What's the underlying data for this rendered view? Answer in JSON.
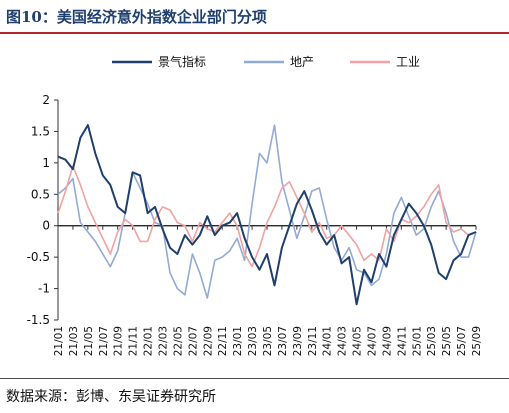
{
  "figure": {
    "title": "图10：美国经济意外指数企业部门分项",
    "source": "数据来源：彭博、东吴证券研究所"
  },
  "colors": {
    "series_0": "#1f3f6d",
    "series_1": "#93aad6",
    "series_2": "#f3a1a1",
    "accent_rule": "#b2252b"
  },
  "chart_data": {
    "type": "line",
    "title": "",
    "xlabel": "",
    "ylabel": "",
    "ylim": [
      -1.5,
      2
    ],
    "yticks": [
      -1.5,
      -1,
      -0.5,
      0,
      0.5,
      1,
      1.5,
      2
    ],
    "grid": false,
    "legend_position": "top",
    "x_tick_labels": [
      "21/01",
      "21/03",
      "21/05",
      "21/07",
      "21/09",
      "21/11",
      "22/01",
      "22/03",
      "22/05",
      "22/07",
      "22/09",
      "22/11",
      "23/01",
      "23/03",
      "23/05",
      "23/07",
      "23/09",
      "23/11",
      "24/01",
      "24/03",
      "24/05",
      "24/07",
      "24/09",
      "24/11",
      "25/01",
      "25/03",
      "25/05",
      "25/07",
      "25/09"
    ],
    "x_months": [
      "21/01",
      "21/02",
      "21/03",
      "21/04",
      "21/05",
      "21/06",
      "21/07",
      "21/08",
      "21/09",
      "21/10",
      "21/11",
      "21/12",
      "22/01",
      "22/02",
      "22/03",
      "22/04",
      "22/05",
      "22/06",
      "22/07",
      "22/08",
      "22/09",
      "22/10",
      "22/11",
      "22/12",
      "23/01",
      "23/02",
      "23/03",
      "23/04",
      "23/05",
      "23/06",
      "23/07",
      "23/08",
      "23/09",
      "23/10",
      "23/11",
      "23/12",
      "24/01",
      "24/02",
      "24/03",
      "24/04",
      "24/05",
      "24/06",
      "24/07",
      "24/08",
      "24/09",
      "24/10",
      "24/11",
      "24/12",
      "25/01",
      "25/02",
      "25/03",
      "25/04",
      "25/05",
      "25/06",
      "25/07",
      "25/08",
      "25/09"
    ],
    "series": [
      {
        "name": "景气指标",
        "values": [
          1.1,
          1.05,
          0.9,
          1.4,
          1.6,
          1.15,
          0.8,
          0.65,
          0.3,
          0.2,
          0.85,
          0.8,
          0.2,
          0.3,
          -0.05,
          -0.35,
          -0.45,
          -0.15,
          -0.3,
          -0.15,
          0.15,
          -0.15,
          0.0,
          0.05,
          0.2,
          -0.2,
          -0.5,
          -0.7,
          -0.45,
          -0.95,
          -0.35,
          0.0,
          0.35,
          0.55,
          0.25,
          -0.1,
          -0.3,
          -0.15,
          -0.6,
          -0.5,
          -1.25,
          -0.7,
          -0.9,
          -0.45,
          -0.65,
          -0.15,
          0.1,
          0.35,
          0.2,
          0.0,
          -0.3,
          -0.75,
          -0.85,
          -0.55,
          -0.45,
          -0.15,
          -0.1
        ]
      },
      {
        "name": "地产",
        "values": [
          0.5,
          0.6,
          0.75,
          0.05,
          -0.1,
          -0.25,
          -0.45,
          -0.65,
          -0.4,
          0.2,
          0.85,
          0.6,
          0.35,
          0.05,
          0.0,
          -0.75,
          -1.0,
          -1.1,
          -0.45,
          -0.75,
          -1.15,
          -0.55,
          -0.5,
          -0.4,
          -0.2,
          -0.55,
          0.35,
          1.15,
          1.0,
          1.6,
          0.7,
          0.25,
          -0.2,
          0.15,
          0.55,
          0.6,
          0.1,
          -0.35,
          -0.55,
          -0.35,
          -0.7,
          -0.75,
          -0.95,
          -0.85,
          -0.45,
          0.2,
          0.45,
          0.15,
          -0.15,
          -0.05,
          0.3,
          0.55,
          0.2,
          -0.25,
          -0.5,
          -0.5,
          -0.1
        ]
      },
      {
        "name": "工业",
        "values": [
          0.2,
          0.55,
          0.95,
          0.65,
          0.3,
          0.05,
          -0.2,
          -0.45,
          -0.1,
          0.1,
          0.0,
          -0.25,
          -0.25,
          0.1,
          0.3,
          0.25,
          0.05,
          0.0,
          -0.25,
          0.05,
          -0.05,
          -0.1,
          0.05,
          0.2,
          0.0,
          -0.45,
          -0.65,
          -0.35,
          0.05,
          0.3,
          0.6,
          0.7,
          0.45,
          0.2,
          -0.1,
          0.05,
          -0.2,
          -0.15,
          0.0,
          -0.15,
          -0.3,
          -0.55,
          -0.45,
          -0.55,
          -0.05,
          -0.25,
          0.1,
          0.05,
          0.15,
          0.3,
          0.5,
          0.65,
          0.05,
          -0.1,
          -0.05,
          -0.15,
          -0.1
        ]
      }
    ]
  }
}
